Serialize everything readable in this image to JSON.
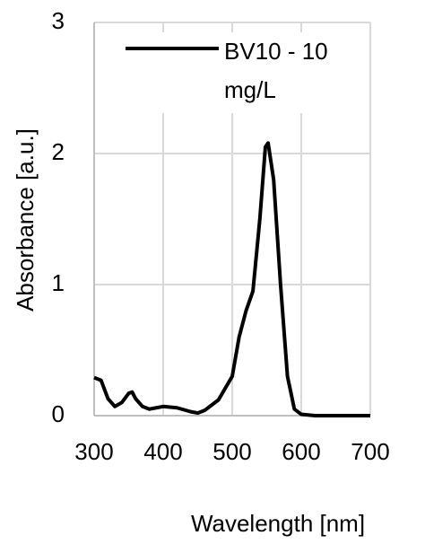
{
  "chart_data": {
    "type": "line",
    "x_label": "Wavelength [nm]",
    "y_label": "Absorbance [a.u.]",
    "series": [
      {
        "name": "BV10 - 10 mg/L",
        "color": "#000000",
        "x": [
          300,
          310,
          320,
          330,
          340,
          350,
          355,
          360,
          370,
          380,
          390,
          400,
          420,
          440,
          450,
          460,
          480,
          500,
          510,
          520,
          530,
          540,
          548,
          552,
          560,
          570,
          580,
          590,
          600,
          620,
          700
        ],
        "values": [
          0.29,
          0.27,
          0.13,
          0.07,
          0.1,
          0.17,
          0.18,
          0.13,
          0.07,
          0.05,
          0.06,
          0.07,
          0.06,
          0.03,
          0.02,
          0.04,
          0.12,
          0.3,
          0.6,
          0.8,
          0.95,
          1.5,
          2.05,
          2.08,
          1.8,
          1.0,
          0.3,
          0.05,
          0.01,
          0,
          0
        ]
      }
    ],
    "xlim": [
      300,
      700
    ],
    "xticks": [
      300,
      400,
      500,
      600,
      700
    ],
    "ylim": [
      0,
      3
    ],
    "yticks": [
      0,
      1,
      2,
      3
    ],
    "grid": true
  }
}
